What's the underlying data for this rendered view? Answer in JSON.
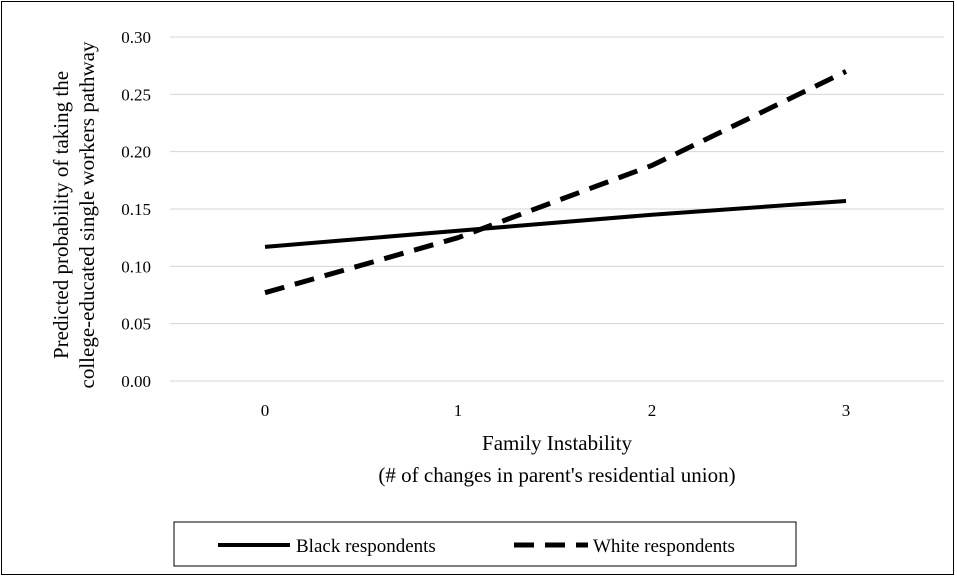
{
  "chart_data": {
    "type": "line",
    "x": [
      0,
      1,
      2,
      3
    ],
    "xticks": [
      "0",
      "1",
      "2",
      "3"
    ],
    "yticks": [
      "0.00",
      "0.05",
      "0.10",
      "0.15",
      "0.20",
      "0.25",
      "0.30"
    ],
    "ylim": [
      0,
      0.3
    ],
    "xlabel_line1": "Family  Instability",
    "xlabel_line2": "(# of changes in parent's residential union)",
    "ylabel_line1": "Predicted  probability of taking the",
    "ylabel_line2": "college-educated single workers pathway",
    "grid": true,
    "legend_position": "bottom",
    "series": [
      {
        "name": "Black respondents",
        "values": [
          0.117,
          0.131,
          0.145,
          0.157
        ],
        "style": "solid",
        "color": "#000000"
      },
      {
        "name": "White respondents",
        "values": [
          0.077,
          0.125,
          0.188,
          0.27
        ],
        "style": "dashed",
        "color": "#000000"
      }
    ]
  }
}
